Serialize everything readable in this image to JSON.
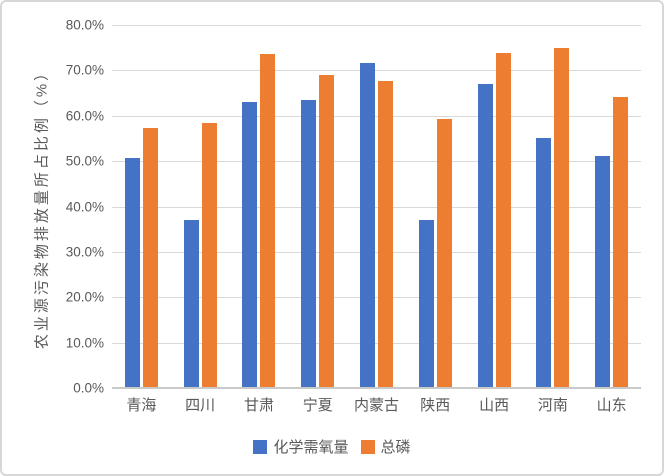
{
  "chart": {
    "background_color": "#FFFFFF",
    "border_color": "#D7D7D7",
    "text_color": "#595959",
    "gridline_color": "#D9D9D9",
    "axis_line_color": "#C9C9C9",
    "y_axis_title": "农业源污染物排放量所占比例（%）",
    "y_tick_labels": [
      "80.0%",
      "70.0%",
      "60.0%",
      "50.0%",
      "40.0%",
      "30.0%",
      "20.0%",
      "10.0%",
      "0.0%"
    ]
  },
  "chart_data": {
    "type": "bar",
    "title": "",
    "xlabel": "",
    "ylabel": "农业源污染物排放量所占比例（%）",
    "ylim": [
      0,
      80
    ],
    "y_tick_step": 10,
    "y_tick_format": "0.0%",
    "grid": true,
    "legend_position": "bottom",
    "categories": [
      "青海",
      "四川",
      "甘肃",
      "宁夏",
      "内蒙古",
      "陕西",
      "山西",
      "河南",
      "山东"
    ],
    "series": [
      {
        "name": "化学需氧量",
        "color": "#4472C4",
        "values": [
          50.7,
          37.0,
          63.1,
          63.5,
          71.6,
          37.1,
          66.9,
          55.1,
          51.1
        ]
      },
      {
        "name": "总磷",
        "color": "#ED7D31",
        "values": [
          57.3,
          58.3,
          73.6,
          68.9,
          67.7,
          59.2,
          73.8,
          74.9,
          64.2
        ]
      }
    ]
  }
}
